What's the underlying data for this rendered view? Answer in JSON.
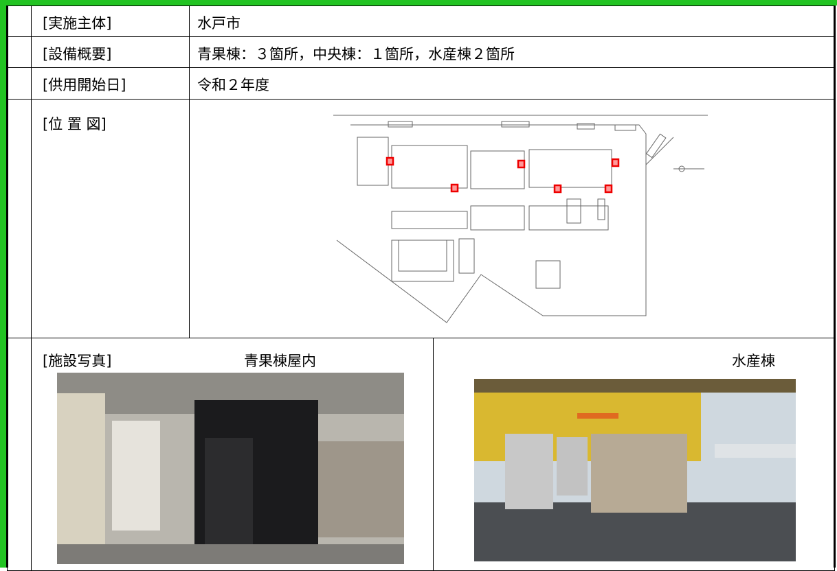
{
  "rows": [
    {
      "label": "[実施主体]",
      "value": "水戸市"
    },
    {
      "label": "[設備概要]",
      "value": "青果棟：３箇所，中央棟：１箇所，水産棟２箇所"
    },
    {
      "label": "[供用開始日]",
      "value": "令和２年度"
    }
  ],
  "map": {
    "label": "[位 置 図]"
  },
  "photos": {
    "label": "[施設写真]",
    "left_caption": "青果棟屋内",
    "right_caption": "水産棟"
  }
}
